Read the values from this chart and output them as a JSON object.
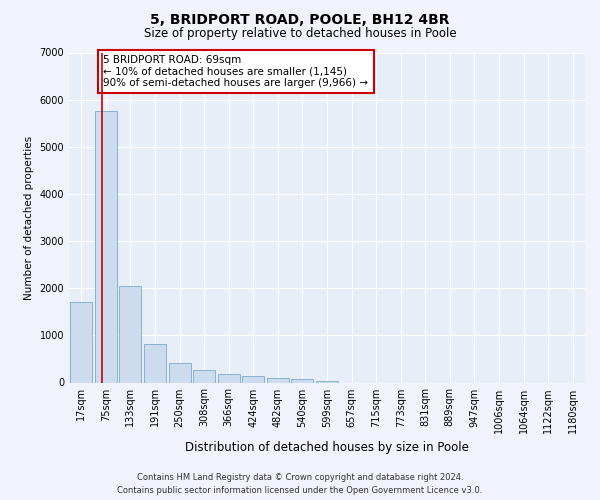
{
  "title": "5, BRIDPORT ROAD, POOLE, BH12 4BR",
  "subtitle": "Size of property relative to detached houses in Poole",
  "xlabel": "Distribution of detached houses by size in Poole",
  "ylabel": "Number of detached properties",
  "footer_line1": "Contains HM Land Registry data © Crown copyright and database right 2024.",
  "footer_line2": "Contains public sector information licensed under the Open Government Licence v3.0.",
  "bar_color": "#ccdcee",
  "bar_edge_color": "#7aaac8",
  "annotation_box_edge": "#cc0000",
  "red_line_color": "#cc0000",
  "annotation_text_line1": "5 BRIDPORT ROAD: 69sqm",
  "annotation_text_line2": "← 10% of detached houses are smaller (1,145)",
  "annotation_text_line3": "90% of semi-detached houses are larger (9,966) →",
  "categories": [
    "17sqm",
    "75sqm",
    "133sqm",
    "191sqm",
    "250sqm",
    "308sqm",
    "366sqm",
    "424sqm",
    "482sqm",
    "540sqm",
    "599sqm",
    "657sqm",
    "715sqm",
    "773sqm",
    "831sqm",
    "889sqm",
    "947sqm",
    "1006sqm",
    "1064sqm",
    "1122sqm",
    "1180sqm"
  ],
  "values": [
    1700,
    5750,
    2050,
    820,
    420,
    270,
    185,
    130,
    100,
    65,
    40,
    0,
    0,
    0,
    0,
    0,
    0,
    0,
    0,
    0,
    0
  ],
  "ylim": [
    0,
    7000
  ],
  "yticks": [
    0,
    1000,
    2000,
    3000,
    4000,
    5000,
    6000,
    7000
  ],
  "background_color": "#f0f4fa",
  "axes_bg_color": "#e8eef8",
  "grid_color": "#ffffff",
  "title_fontsize": 10,
  "subtitle_fontsize": 8.5,
  "tick_fontsize": 7,
  "ylabel_fontsize": 7.5,
  "xlabel_fontsize": 8.5,
  "footer_fontsize": 6,
  "annot_fontsize": 7.5
}
